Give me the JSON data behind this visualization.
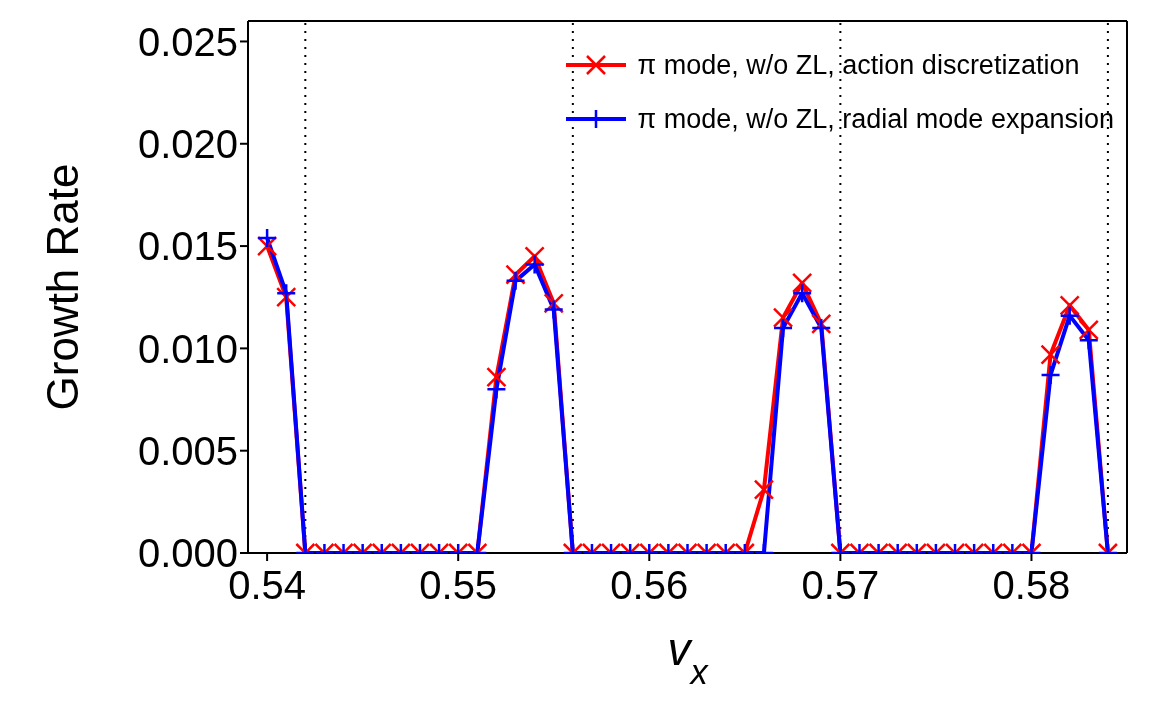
{
  "chart_data": {
    "type": "line",
    "xlabel": "v$_{x}$",
    "ylabel": "Growth Rate",
    "x": [
      0.54,
      0.541,
      0.542,
      0.543,
      0.544,
      0.545,
      0.546,
      0.547,
      0.548,
      0.549,
      0.55,
      0.551,
      0.552,
      0.553,
      0.554,
      0.555,
      0.556,
      0.557,
      0.558,
      0.559,
      0.56,
      0.561,
      0.562,
      0.563,
      0.564,
      0.565,
      0.566,
      0.567,
      0.568,
      0.569,
      0.57,
      0.571,
      0.572,
      0.573,
      0.574,
      0.575,
      0.576,
      0.577,
      0.578,
      0.579,
      0.58,
      0.581,
      0.582,
      0.583,
      0.584
    ],
    "series": [
      {
        "name": "π mode, w/o ZL, action discretization",
        "color": "#ff0000",
        "marker": "x",
        "values": [
          0.015,
          0.0125,
          0,
          0,
          0,
          0,
          0,
          0,
          0,
          0,
          0,
          0,
          0.0086,
          0.0136,
          0.0145,
          0.0122,
          0,
          0,
          0,
          0,
          0,
          0,
          0,
          0,
          0,
          0,
          0.0031,
          0.0115,
          0.0132,
          0.0112,
          0,
          0,
          0,
          0,
          0,
          0,
          0,
          0,
          0,
          0,
          0,
          0.0097,
          0.0121,
          0.0109,
          0
        ]
      },
      {
        "name": "π mode, w/o ZL, radial mode expansion",
        "color": "#0000ff",
        "marker": "cross",
        "values": [
          0.0154,
          0.0127,
          0,
          0,
          0,
          0,
          0,
          0,
          0,
          0,
          0,
          0,
          0.008,
          0.0133,
          0.0141,
          0.0119,
          0,
          0,
          0,
          0,
          0,
          0,
          0,
          0,
          0,
          0,
          0,
          0.011,
          0.0127,
          0.011,
          0,
          0,
          0,
          0,
          0,
          0,
          0,
          0,
          0,
          0,
          0,
          0.0087,
          0.0116,
          0.0104,
          0
        ]
      }
    ],
    "xlim": [
      0.539,
      0.585
    ],
    "xticks": [
      0.54,
      0.55,
      0.56,
      0.57,
      0.58
    ],
    "ylim": [
      0,
      0.026
    ],
    "yticks": [
      {
        "value": 0,
        "label": "0.000"
      },
      {
        "value": 0.005,
        "label": "0.005"
      },
      {
        "value": 0.01,
        "label": "0.010"
      },
      {
        "value": 0.015,
        "label": "0.015"
      },
      {
        "value": 0.02,
        "label": "0.020"
      },
      {
        "value": 0.025,
        "label": "0.025"
      }
    ],
    "ref_lines": [
      {
        "axis": "x",
        "value": 0.542,
        "color": "#000000",
        "line_style": "dotted"
      },
      {
        "axis": "x",
        "value": 0.556,
        "color": "#000000",
        "line_style": "dotted"
      },
      {
        "axis": "x",
        "value": 0.57,
        "color": "#000000",
        "line_style": "dotted"
      },
      {
        "axis": "x",
        "value": 0.584,
        "color": "#000000",
        "line_style": "dotted"
      }
    ],
    "grid": false,
    "legend": "top right",
    "line_style": "solid"
  }
}
